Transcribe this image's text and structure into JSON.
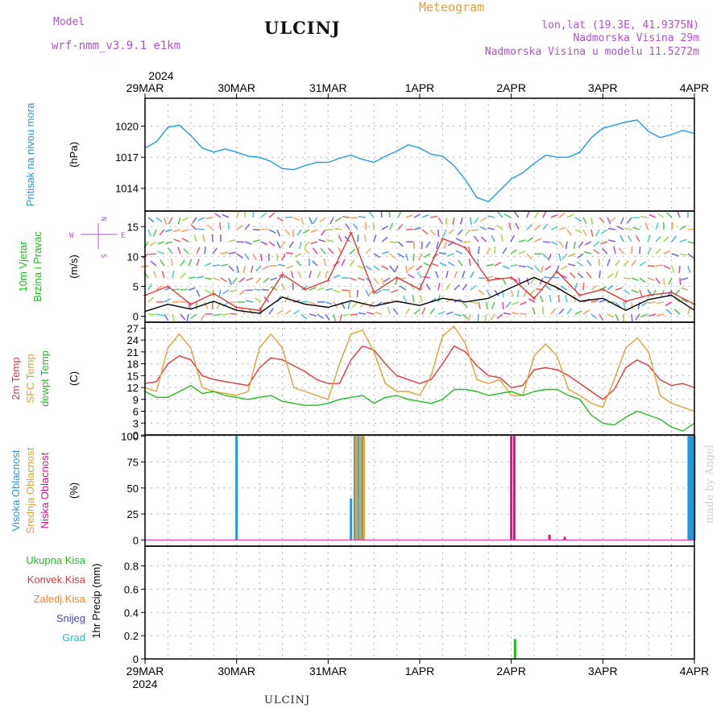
{
  "header": {
    "model_label": "Model",
    "model_name": "wrf-nmm_v3.9.1 e1km",
    "title": "ULCINJ",
    "meteogram_label": "Meteogram",
    "lonlat": "lon,lat (19.3E, 41.9375N)",
    "elevation": "Nadmorska Visina 29m",
    "model_elevation": "Nadmorska Visina u modelu 11.5272m"
  },
  "footer": {
    "station": "ULCINJ"
  },
  "watermark": "made by Angel",
  "colors": {
    "pressure": "#1e9be0",
    "wind_speed": "#000000",
    "gust": "#e03838",
    "temp2m": "#e03838",
    "sfc_temp": "#e0a030",
    "dewpt": "#22bb22",
    "high_cloud": "#1e9be0",
    "mid_cloud": "#e0a030",
    "low_cloud": "#e01090",
    "total_precip": "#22bb22",
    "conv_precip": "#e03838",
    "frozen": "#ff7f27",
    "snow": "#4444dd",
    "hail": "#22c0c0",
    "purple_text": "#b050d0",
    "meteogram_text": "#e0a030"
  },
  "chart_data": {
    "type": "line",
    "time_axis": {
      "year": "2024",
      "ticks": [
        "29MAR",
        "30MAR",
        "31MAR",
        "1APR",
        "2APR",
        "3APR",
        "4APR"
      ],
      "start": "2024-03-29T00:00",
      "end": "2024-04-04T00:00"
    },
    "panels": [
      {
        "id": "pressure",
        "ylabel_lines": [
          "Pritisak na nivou mora"
        ],
        "unit": "(hPa)",
        "ylim": [
          1011.8,
          1022.7
        ],
        "yticks": [
          1014,
          1017,
          1020
        ],
        "grid": true,
        "series": [
          {
            "name": "Pritisak na nivou mora",
            "kind": "line",
            "x": [
              0,
              3,
              6,
              9,
              12,
              15,
              18,
              21,
              24,
              27,
              30,
              33,
              36,
              39,
              42,
              45,
              48,
              51,
              54,
              57,
              60,
              63,
              66,
              69,
              72,
              75,
              78,
              81,
              84,
              87,
              90,
              93,
              96,
              99,
              102,
              105,
              108,
              111,
              114,
              117,
              120,
              123,
              126,
              129,
              132,
              135,
              138,
              141,
              144
            ],
            "y": [
              1017.9,
              1018.5,
              1019.9,
              1020.1,
              1019.1,
              1017.9,
              1017.5,
              1017.8,
              1017.5,
              1017.1,
              1017.0,
              1016.6,
              1015.9,
              1015.8,
              1016.2,
              1016.5,
              1016.5,
              1016.9,
              1017.2,
              1016.8,
              1016.5,
              1017.1,
              1017.6,
              1018.2,
              1017.9,
              1017.3,
              1017.1,
              1016.2,
              1014.8,
              1013.1,
              1012.7,
              1013.8,
              1014.9,
              1015.5,
              1016.4,
              1017.2,
              1017.0,
              1017.0,
              1017.5,
              1018.9,
              1019.8,
              1020.1,
              1020.4,
              1020.6,
              1019.5,
              1018.9,
              1019.2,
              1019.6,
              1019.3
            ]
          }
        ]
      },
      {
        "id": "wind",
        "ylabel_lines": [
          "10m Vjetar",
          "Brzina i Pravac"
        ],
        "unit": "(m/s)",
        "compass": {
          "N": "N",
          "W": "W",
          "E": "E",
          "S": "S"
        },
        "ylim": [
          -1,
          17.6
        ],
        "yticks": [
          0,
          5,
          10,
          15
        ],
        "grid": true,
        "series": [
          {
            "name": "Brzina",
            "kind": "line",
            "x": [
              0,
              6,
              12,
              18,
              24,
              30,
              36,
              42,
              48,
              54,
              60,
              66,
              72,
              78,
              84,
              90,
              96,
              102,
              108,
              114,
              120,
              126,
              132,
              138,
              144
            ],
            "y": [
              0.8,
              2.0,
              1.2,
              2.5,
              1.0,
              0.5,
              3.2,
              2.0,
              1.5,
              2.6,
              1.7,
              2.5,
              1.8,
              3.0,
              2.4,
              3.0,
              4.8,
              6.5,
              4.8,
              2.5,
              3.0,
              1.0,
              2.8,
              3.5,
              1.0
            ]
          },
          {
            "name": "Udari",
            "kind": "line",
            "x": [
              0,
              6,
              12,
              18,
              24,
              30,
              36,
              42,
              48,
              54,
              60,
              66,
              72,
              78,
              84,
              90,
              96,
              102,
              108,
              114,
              120,
              126,
              132,
              138,
              144
            ],
            "y": [
              3.5,
              5.0,
              2.0,
              3.8,
              1.5,
              1.0,
              7.0,
              4.5,
              6.0,
              14.0,
              4.0,
              6.5,
              4.5,
              13.0,
              11.5,
              6.0,
              6.5,
              3.0,
              7.5,
              3.5,
              4.5,
              2.5,
              3.5,
              4.0,
              2.0
            ]
          }
        ]
      },
      {
        "id": "temperature",
        "ylabel_lines": [
          "2m Temp",
          "SFC Temp",
          "dewpt Temp"
        ],
        "unit": "(C)",
        "ylim": [
          0,
          28.5
        ],
        "yticks": [
          0,
          3,
          6,
          9,
          12,
          15,
          18,
          21,
          24,
          27
        ],
        "grid": true,
        "series": [
          {
            "name": "2m Temp",
            "kind": "line",
            "x": [
              0,
              3,
              6,
              9,
              12,
              15,
              18,
              21,
              24,
              27,
              30,
              33,
              36,
              39,
              42,
              45,
              48,
              51,
              54,
              57,
              60,
              63,
              66,
              69,
              72,
              75,
              78,
              81,
              84,
              87,
              90,
              93,
              96,
              99,
              102,
              105,
              108,
              111,
              114,
              117,
              120,
              123,
              126,
              129,
              132,
              135,
              138,
              141,
              144
            ],
            "y": [
              13,
              13.5,
              18,
              20,
              19,
              15,
              14,
              13.5,
              13,
              12.5,
              17,
              19.5,
              19,
              17.5,
              16,
              14,
              13,
              13,
              19,
              22.5,
              21.5,
              18,
              15,
              14,
              13,
              14,
              18,
              22.5,
              21,
              17.5,
              15,
              14.5,
              12,
              12.5,
              16.5,
              17,
              16.5,
              15,
              13,
              11,
              9,
              11.5,
              17,
              19,
              17.5,
              14,
              12.5,
              13,
              12
            ]
          },
          {
            "name": "SFC Temp",
            "kind": "line",
            "x": [
              0,
              3,
              6,
              9,
              12,
              15,
              18,
              21,
              24,
              27,
              30,
              33,
              36,
              39,
              42,
              45,
              48,
              51,
              54,
              57,
              60,
              63,
              66,
              69,
              72,
              75,
              78,
              81,
              84,
              87,
              90,
              93,
              96,
              99,
              102,
              105,
              108,
              111,
              114,
              117,
              120,
              123,
              126,
              129,
              132,
              135,
              138,
              141,
              144
            ],
            "y": [
              12,
              11,
              22,
              25.5,
              22,
              12,
              11,
              10.5,
              10,
              11,
              22,
              25.5,
              22,
              12,
              11,
              10,
              9,
              18,
              25.5,
              26.5,
              21,
              13,
              11,
              11,
              10,
              15,
              25,
              27.5,
              23,
              14,
              13,
              14,
              10,
              10,
              20,
              23,
              20,
              11.5,
              10,
              8,
              7,
              14,
              22,
              24.5,
              21,
              10,
              8,
              7,
              6
            ]
          },
          {
            "name": "dewpt Temp",
            "kind": "line",
            "x": [
              0,
              3,
              6,
              9,
              12,
              15,
              18,
              21,
              24,
              27,
              30,
              33,
              36,
              39,
              42,
              45,
              48,
              51,
              54,
              57,
              60,
              63,
              66,
              69,
              72,
              75,
              78,
              81,
              84,
              87,
              90,
              93,
              96,
              99,
              102,
              105,
              108,
              111,
              114,
              117,
              120,
              123,
              126,
              129,
              132,
              135,
              138,
              141,
              144
            ],
            "y": [
              11,
              9.5,
              9.5,
              11,
              12.5,
              10.5,
              11,
              10,
              9.5,
              9,
              9.5,
              10,
              8.5,
              8,
              7.5,
              7.5,
              8,
              9,
              9.5,
              10,
              8,
              9.5,
              10,
              9,
              8.5,
              8,
              9,
              11.5,
              11.5,
              11,
              10,
              10.5,
              11,
              10,
              11,
              11.5,
              11.5,
              10,
              9,
              5,
              3,
              2.5,
              4.5,
              6,
              5,
              4,
              2,
              1,
              3
            ]
          }
        ]
      },
      {
        "id": "cloud",
        "ylabel_lines": [
          "Visoka Oblacnost",
          "Srednja Oblacnost",
          "Niska Oblacnost"
        ],
        "unit": "(%)",
        "ylim": [
          -6,
          101
        ],
        "yticks": [
          0,
          25,
          50,
          75,
          100
        ],
        "grid": true,
        "series": [
          {
            "name": "Visoka Oblacnost",
            "kind": "bar",
            "x": [
              24,
              54,
              55,
              56,
              57,
              142.5,
              143,
              143.5,
              144
            ],
            "y": [
              100,
              40,
              100,
              100,
              100,
              100,
              100,
              100,
              100
            ]
          },
          {
            "name": "Srednja Oblacnost",
            "kind": "bar",
            "x": [
              55.3,
              56.3,
              57.3
            ],
            "y": [
              100,
              100,
              100
            ]
          },
          {
            "name": "Niska Oblacnost",
            "kind": "bar",
            "x": [
              96,
              96.8,
              106,
              110
            ],
            "y": [
              100,
              100,
              5,
              3
            ]
          }
        ]
      },
      {
        "id": "precip",
        "ylabel_lines": [
          "Ukupna Kisa",
          "Konvek.Kisa",
          "Zaledj.Kisa",
          "Snijeg",
          "Grad"
        ],
        "unit": "1hr Precip (mm)",
        "ylim": [
          0,
          0.97
        ],
        "yticks": [
          0,
          0.2,
          0.4,
          0.6,
          0.8
        ],
        "grid": true,
        "series": [
          {
            "name": "Ukupna Kisa",
            "kind": "bar",
            "x": [
              97
            ],
            "y": [
              0.17
            ]
          }
        ]
      }
    ]
  }
}
